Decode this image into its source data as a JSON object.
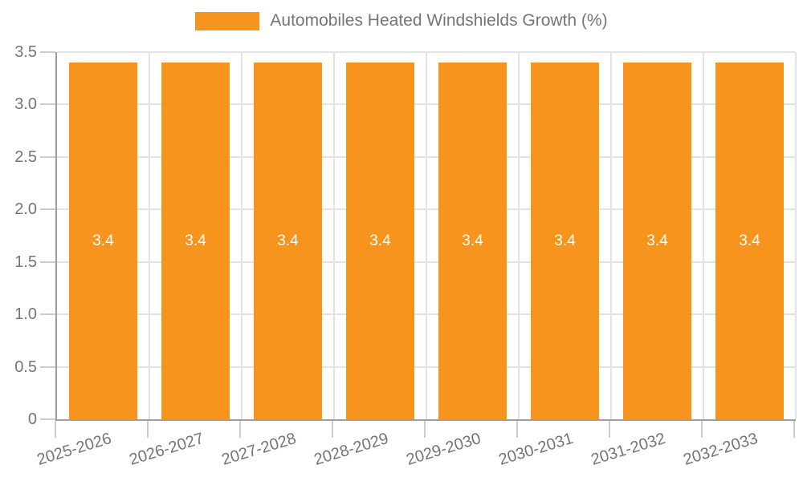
{
  "chart_data": {
    "type": "bar",
    "title": "Automobiles Heated Windshields Growth (%)",
    "categories": [
      "2025-2026",
      "2026-2027",
      "2027-2028",
      "2028-2029",
      "2029-2030",
      "2030-2031",
      "2031-2032",
      "2032-2033"
    ],
    "series": [
      {
        "name": "Automobiles Heated Windshields Growth (%)",
        "values": [
          3.4,
          3.4,
          3.4,
          3.4,
          3.4,
          3.4,
          3.4,
          3.4
        ],
        "value_labels": [
          "3.4",
          "3.4",
          "3.4",
          "3.4",
          "3.4",
          "3.4",
          "3.4",
          "3.4"
        ]
      }
    ],
    "ylim": [
      0,
      3.5
    ],
    "yticks": [
      0,
      0.5,
      1.0,
      1.5,
      2.0,
      2.5,
      3.0,
      3.5
    ],
    "ytick_labels": [
      "0",
      "0.5",
      "1.0",
      "1.5",
      "2.0",
      "2.5",
      "3.0",
      "3.5"
    ],
    "x_label_rotation_deg": -17,
    "grid": true,
    "legend_position": "top-center",
    "colors": {
      "bar": "#f7941e",
      "value_label": "#ffffff",
      "tick_label": "#757575",
      "legend_text": "#757575",
      "gridline": "#e2e2e2",
      "tick_mark": "#cccccc",
      "spine": "#9e9e9e",
      "background": "#ffffff"
    }
  }
}
